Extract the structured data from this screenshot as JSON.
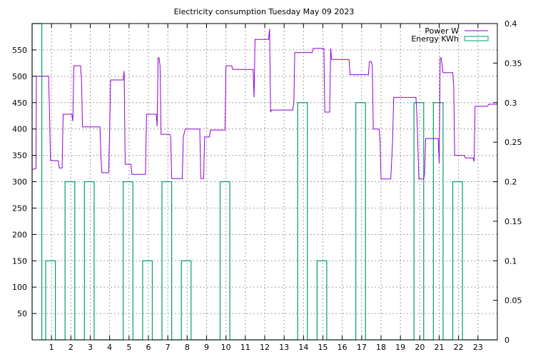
{
  "chart_data": {
    "type": "line",
    "title": "Electricity consumption Tuesday May 09 2023",
    "xlabel": "",
    "ylabel": "",
    "x_ticks": [
      1,
      2,
      3,
      4,
      5,
      6,
      7,
      8,
      9,
      10,
      11,
      12,
      13,
      14,
      15,
      16,
      17,
      18,
      19,
      20,
      21,
      22,
      23
    ],
    "xlim": [
      0,
      24
    ],
    "ylim": [
      0,
      600
    ],
    "y_ticks": [
      50,
      100,
      150,
      200,
      250,
      300,
      350,
      400,
      450,
      500,
      550
    ],
    "y2lim": [
      0,
      0.4
    ],
    "y2_ticks": [
      "0",
      "0.05",
      "0.1",
      "0.15",
      "0.2",
      "0.25",
      "0.3",
      "0.35",
      "0.4"
    ],
    "y2_tick_values": [
      0,
      0.05,
      0.1,
      0.15,
      0.2,
      0.25,
      0.3,
      0.35,
      0.4
    ],
    "grid": true,
    "legend": "top-right",
    "colors": {
      "power": "#9400d3",
      "energy": "#009e73"
    },
    "series": [
      {
        "name": "Power W",
        "axis": "y",
        "style": "line",
        "points": [
          [
            0.0,
            323
          ],
          [
            0.2,
            325
          ],
          [
            0.22,
            500
          ],
          [
            0.85,
            500
          ],
          [
            0.9,
            425
          ],
          [
            0.95,
            340
          ],
          [
            1.35,
            340
          ],
          [
            1.4,
            326
          ],
          [
            1.55,
            326
          ],
          [
            1.6,
            428
          ],
          [
            2.05,
            428
          ],
          [
            2.1,
            415
          ],
          [
            2.15,
            520
          ],
          [
            2.5,
            520
          ],
          [
            2.55,
            490
          ],
          [
            2.6,
            404
          ],
          [
            3.5,
            404
          ],
          [
            3.55,
            350
          ],
          [
            3.6,
            317
          ],
          [
            3.95,
            317
          ],
          [
            4.0,
            400
          ],
          [
            4.05,
            493
          ],
          [
            4.7,
            493
          ],
          [
            4.75,
            510
          ],
          [
            4.8,
            333
          ],
          [
            5.1,
            333
          ],
          [
            5.15,
            314
          ],
          [
            5.85,
            314
          ],
          [
            5.9,
            428
          ],
          [
            6.4,
            428
          ],
          [
            6.45,
            405
          ],
          [
            6.5,
            535
          ],
          [
            6.55,
            535
          ],
          [
            6.6,
            520
          ],
          [
            6.65,
            390
          ],
          [
            7.1,
            390
          ],
          [
            7.15,
            385
          ],
          [
            7.2,
            306
          ],
          [
            7.75,
            306
          ],
          [
            7.8,
            385
          ],
          [
            7.9,
            400
          ],
          [
            8.65,
            400
          ],
          [
            8.7,
            306
          ],
          [
            8.85,
            306
          ],
          [
            8.9,
            385
          ],
          [
            9.15,
            385
          ],
          [
            9.2,
            398
          ],
          [
            9.95,
            398
          ],
          [
            10.0,
            520
          ],
          [
            10.3,
            520
          ],
          [
            10.35,
            513
          ],
          [
            11.4,
            513
          ],
          [
            11.45,
            460
          ],
          [
            11.5,
            570
          ],
          [
            12.2,
            570
          ],
          [
            12.25,
            590
          ],
          [
            12.3,
            432
          ],
          [
            12.35,
            436
          ],
          [
            13.45,
            436
          ],
          [
            13.5,
            450
          ],
          [
            13.55,
            545
          ],
          [
            14.45,
            545
          ],
          [
            14.5,
            553
          ],
          [
            15.05,
            553
          ],
          [
            15.1,
            432
          ],
          [
            15.35,
            432
          ],
          [
            15.4,
            553
          ],
          [
            15.45,
            532
          ],
          [
            16.35,
            532
          ],
          [
            16.4,
            503
          ],
          [
            17.35,
            503
          ],
          [
            17.4,
            528
          ],
          [
            17.5,
            528
          ],
          [
            17.55,
            520
          ],
          [
            17.6,
            400
          ],
          [
            17.9,
            400
          ],
          [
            17.95,
            380
          ],
          [
            18.0,
            305
          ],
          [
            18.5,
            305
          ],
          [
            18.55,
            340
          ],
          [
            18.6,
            380
          ],
          [
            18.65,
            460
          ],
          [
            19.8,
            460
          ],
          [
            19.85,
            425
          ],
          [
            19.9,
            370
          ],
          [
            19.95,
            305
          ],
          [
            20.2,
            305
          ],
          [
            20.25,
            315
          ],
          [
            20.3,
            382
          ],
          [
            20.95,
            382
          ],
          [
            21.0,
            335
          ],
          [
            21.05,
            535
          ],
          [
            21.1,
            535
          ],
          [
            21.15,
            520
          ],
          [
            21.2,
            507
          ],
          [
            21.7,
            507
          ],
          [
            21.75,
            480
          ],
          [
            21.8,
            350
          ],
          [
            22.3,
            350
          ],
          [
            22.35,
            345
          ],
          [
            22.75,
            345
          ],
          [
            22.8,
            338
          ],
          [
            22.85,
            443
          ],
          [
            23.5,
            443
          ],
          [
            23.55,
            447
          ],
          [
            24.0,
            447
          ]
        ]
      },
      {
        "name": "Energy KWh",
        "axis": "y2",
        "style": "steps",
        "bars": [
          [
            0.0,
            0.5,
            0.4
          ],
          [
            0.7,
            1.2,
            0.1
          ],
          [
            1.7,
            2.2,
            0.2
          ],
          [
            2.7,
            3.2,
            0.2
          ],
          [
            4.7,
            5.2,
            0.2
          ],
          [
            5.7,
            6.2,
            0.1
          ],
          [
            6.7,
            7.2,
            0.2
          ],
          [
            7.7,
            8.2,
            0.1
          ],
          [
            9.7,
            10.2,
            0.2
          ],
          [
            13.7,
            14.2,
            0.3
          ],
          [
            14.7,
            15.2,
            0.1
          ],
          [
            16.7,
            17.2,
            0.3
          ],
          [
            19.7,
            20.2,
            0.3
          ],
          [
            20.7,
            21.2,
            0.3
          ],
          [
            21.7,
            22.2,
            0.2
          ]
        ]
      }
    ]
  }
}
